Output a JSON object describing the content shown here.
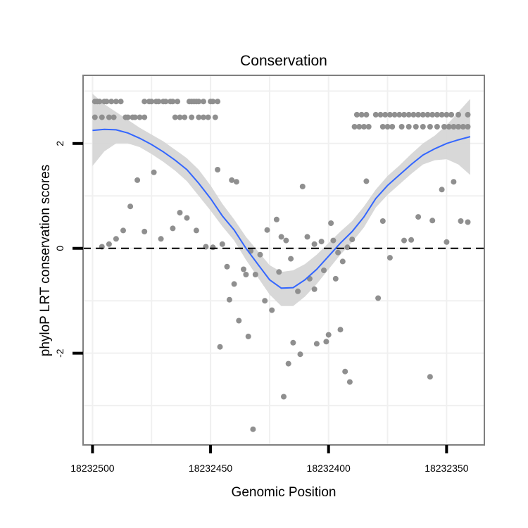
{
  "chart_data": {
    "type": "scatter",
    "title": "Conservation",
    "xlabel": "Genomic Position",
    "ylabel": "phyloP LRT conservation scores",
    "x_reversed": true,
    "xlim": [
      18232504,
      18232334
    ],
    "ylim": [
      -3.75,
      3.3
    ],
    "xticks": [
      18232500,
      18232450,
      18232400,
      18232350
    ],
    "xtick_labels": [
      "18232500",
      "18232450",
      "18232400",
      "18232350"
    ],
    "yticks": [
      2,
      0,
      -2
    ],
    "ytick_labels": [
      "2",
      "0",
      "-2"
    ],
    "grid": true,
    "reference_line": {
      "y": 0,
      "style": "dashed"
    },
    "colors": {
      "points": "#8f8f8f",
      "smooth": "#3366ff",
      "ribbon": "#d4d4d4",
      "panel_border": "#7f7f7f",
      "grid": "#f0f0f0"
    },
    "points": [
      {
        "x": 18232499,
        "y": 2.8
      },
      {
        "x": 18232498,
        "y": 2.8
      },
      {
        "x": 18232497,
        "y": 2.8
      },
      {
        "x": 18232495,
        "y": 2.8
      },
      {
        "x": 18232494,
        "y": 2.8
      },
      {
        "x": 18232492,
        "y": 2.8
      },
      {
        "x": 18232490,
        "y": 2.8
      },
      {
        "x": 18232488,
        "y": 2.8
      },
      {
        "x": 18232499,
        "y": 2.5
      },
      {
        "x": 18232496,
        "y": 2.5
      },
      {
        "x": 18232493,
        "y": 2.5
      },
      {
        "x": 18232491,
        "y": 2.5
      },
      {
        "x": 18232486,
        "y": 2.5
      },
      {
        "x": 18232485,
        "y": 2.5
      },
      {
        "x": 18232483,
        "y": 2.5
      },
      {
        "x": 18232482,
        "y": 2.5
      },
      {
        "x": 18232480,
        "y": 2.5
      },
      {
        "x": 18232478,
        "y": 2.5
      },
      {
        "x": 18232478,
        "y": 2.8
      },
      {
        "x": 18232476,
        "y": 2.8
      },
      {
        "x": 18232475,
        "y": 2.8
      },
      {
        "x": 18232473,
        "y": 2.8
      },
      {
        "x": 18232472,
        "y": 2.8
      },
      {
        "x": 18232470,
        "y": 2.8
      },
      {
        "x": 18232469,
        "y": 2.8
      },
      {
        "x": 18232467,
        "y": 2.8
      },
      {
        "x": 18232466,
        "y": 2.8
      },
      {
        "x": 18232464,
        "y": 2.8
      },
      {
        "x": 18232465,
        "y": 2.5
      },
      {
        "x": 18232463,
        "y": 2.5
      },
      {
        "x": 18232461,
        "y": 2.5
      },
      {
        "x": 18232458,
        "y": 2.5
      },
      {
        "x": 18232459,
        "y": 2.8
      },
      {
        "x": 18232458,
        "y": 2.8
      },
      {
        "x": 18232457,
        "y": 2.8
      },
      {
        "x": 18232456,
        "y": 2.8
      },
      {
        "x": 18232455,
        "y": 2.8
      },
      {
        "x": 18232453,
        "y": 2.8
      },
      {
        "x": 18232455,
        "y": 2.5
      },
      {
        "x": 18232453,
        "y": 2.5
      },
      {
        "x": 18232451,
        "y": 2.5
      },
      {
        "x": 18232448,
        "y": 2.5
      },
      {
        "x": 18232450,
        "y": 2.8
      },
      {
        "x": 18232449,
        "y": 2.8
      },
      {
        "x": 18232447,
        "y": 2.8
      },
      {
        "x": 18232496,
        "y": 0.03
      },
      {
        "x": 18232493,
        "y": 0.08
      },
      {
        "x": 18232490,
        "y": 0.18
      },
      {
        "x": 18232487,
        "y": 0.34
      },
      {
        "x": 18232484,
        "y": 0.8
      },
      {
        "x": 18232481,
        "y": 1.3
      },
      {
        "x": 18232478,
        "y": 0.32
      },
      {
        "x": 18232474,
        "y": 1.45
      },
      {
        "x": 18232471,
        "y": 0.18
      },
      {
        "x": 18232466,
        "y": 0.38
      },
      {
        "x": 18232463,
        "y": 0.68
      },
      {
        "x": 18232460,
        "y": 0.58
      },
      {
        "x": 18232456,
        "y": 0.34
      },
      {
        "x": 18232452,
        "y": 0.03
      },
      {
        "x": 18232449,
        "y": 0.02
      },
      {
        "x": 18232447,
        "y": 1.5
      },
      {
        "x": 18232445,
        "y": 0.08
      },
      {
        "x": 18232441,
        "y": 1.3
      },
      {
        "x": 18232439,
        "y": 1.27
      },
      {
        "x": 18232443,
        "y": -0.35
      },
      {
        "x": 18232442,
        "y": -0.98
      },
      {
        "x": 18232440,
        "y": -0.68
      },
      {
        "x": 18232438,
        "y": -1.38
      },
      {
        "x": 18232436,
        "y": -0.4
      },
      {
        "x": 18232435,
        "y": -0.5
      },
      {
        "x": 18232434,
        "y": -1.68
      },
      {
        "x": 18232432,
        "y": -3.45
      },
      {
        "x": 18232431,
        "y": -0.5
      },
      {
        "x": 18232429,
        "y": -0.12
      },
      {
        "x": 18232427,
        "y": -1.0
      },
      {
        "x": 18232426,
        "y": 0.35
      },
      {
        "x": 18232424,
        "y": -1.18
      },
      {
        "x": 18232446,
        "y": -1.88
      },
      {
        "x": 18232433,
        "y": -0.05
      },
      {
        "x": 18232422,
        "y": 0.55
      },
      {
        "x": 18232421,
        "y": -0.45
      },
      {
        "x": 18232420,
        "y": 0.22
      },
      {
        "x": 18232419,
        "y": -2.83
      },
      {
        "x": 18232418,
        "y": 0.15
      },
      {
        "x": 18232417,
        "y": -2.2
      },
      {
        "x": 18232416,
        "y": -0.2
      },
      {
        "x": 18232415,
        "y": -1.8
      },
      {
        "x": 18232413,
        "y": -0.82
      },
      {
        "x": 18232412,
        "y": -2.02
      },
      {
        "x": 18232411,
        "y": 1.18
      },
      {
        "x": 18232409,
        "y": 0.22
      },
      {
        "x": 18232408,
        "y": -0.58
      },
      {
        "x": 18232406,
        "y": -0.78
      },
      {
        "x": 18232406,
        "y": 0.08
      },
      {
        "x": 18232405,
        "y": -1.82
      },
      {
        "x": 18232403,
        "y": 0.13
      },
      {
        "x": 18232402,
        "y": -0.42
      },
      {
        "x": 18232401,
        "y": -1.78
      },
      {
        "x": 18232400,
        "y": -1.65
      },
      {
        "x": 18232399,
        "y": 0.48
      },
      {
        "x": 18232398,
        "y": 0.15
      },
      {
        "x": 18232397,
        "y": -0.58
      },
      {
        "x": 18232396,
        "y": -0.08
      },
      {
        "x": 18232395,
        "y": -1.55
      },
      {
        "x": 18232394,
        "y": -0.25
      },
      {
        "x": 18232393,
        "y": -2.35
      },
      {
        "x": 18232392,
        "y": 0.02
      },
      {
        "x": 18232391,
        "y": -2.55
      },
      {
        "x": 18232390,
        "y": 0.17
      },
      {
        "x": 18232388,
        "y": 2.55
      },
      {
        "x": 18232386,
        "y": 2.55
      },
      {
        "x": 18232384,
        "y": 2.55
      },
      {
        "x": 18232380,
        "y": 2.55
      },
      {
        "x": 18232378,
        "y": 2.55
      },
      {
        "x": 18232376,
        "y": 2.55
      },
      {
        "x": 18232374,
        "y": 2.55
      },
      {
        "x": 18232372,
        "y": 2.55
      },
      {
        "x": 18232370,
        "y": 2.55
      },
      {
        "x": 18232368,
        "y": 2.55
      },
      {
        "x": 18232366,
        "y": 2.55
      },
      {
        "x": 18232364,
        "y": 2.55
      },
      {
        "x": 18232362,
        "y": 2.55
      },
      {
        "x": 18232360,
        "y": 2.55
      },
      {
        "x": 18232358,
        "y": 2.55
      },
      {
        "x": 18232356,
        "y": 2.55
      },
      {
        "x": 18232354,
        "y": 2.55
      },
      {
        "x": 18232352,
        "y": 2.55
      },
      {
        "x": 18232350,
        "y": 2.55
      },
      {
        "x": 18232348,
        "y": 2.55
      },
      {
        "x": 18232345,
        "y": 2.55
      },
      {
        "x": 18232341,
        "y": 2.55
      },
      {
        "x": 18232389,
        "y": 2.32
      },
      {
        "x": 18232387,
        "y": 2.32
      },
      {
        "x": 18232385,
        "y": 2.32
      },
      {
        "x": 18232383,
        "y": 2.32
      },
      {
        "x": 18232377,
        "y": 2.32
      },
      {
        "x": 18232375,
        "y": 2.32
      },
      {
        "x": 18232373,
        "y": 2.32
      },
      {
        "x": 18232369,
        "y": 2.32
      },
      {
        "x": 18232366,
        "y": 2.32
      },
      {
        "x": 18232363,
        "y": 2.32
      },
      {
        "x": 18232360,
        "y": 2.32
      },
      {
        "x": 18232357,
        "y": 2.32
      },
      {
        "x": 18232354,
        "y": 2.32
      },
      {
        "x": 18232351,
        "y": 2.32
      },
      {
        "x": 18232349,
        "y": 2.32
      },
      {
        "x": 18232347,
        "y": 2.32
      },
      {
        "x": 18232345,
        "y": 2.32
      },
      {
        "x": 18232343,
        "y": 2.32
      },
      {
        "x": 18232341,
        "y": 2.32
      },
      {
        "x": 18232384,
        "y": 1.28
      },
      {
        "x": 18232379,
        "y": -0.95
      },
      {
        "x": 18232377,
        "y": 0.52
      },
      {
        "x": 18232374,
        "y": -0.18
      },
      {
        "x": 18232368,
        "y": 0.15
      },
      {
        "x": 18232365,
        "y": 0.16
      },
      {
        "x": 18232362,
        "y": 0.6
      },
      {
        "x": 18232357,
        "y": -2.45
      },
      {
        "x": 18232356,
        "y": 0.53
      },
      {
        "x": 18232352,
        "y": 1.12
      },
      {
        "x": 18232350,
        "y": 0.12
      },
      {
        "x": 18232347,
        "y": 1.27
      },
      {
        "x": 18232344,
        "y": 0.52
      },
      {
        "x": 18232341,
        "y": 0.5
      }
    ],
    "smooth": {
      "method": "loess",
      "x": [
        18232500,
        18232495,
        18232490,
        18232485,
        18232480,
        18232475,
        18232470,
        18232465,
        18232460,
        18232455,
        18232450,
        18232445,
        18232440,
        18232435,
        18232430,
        18232425,
        18232420,
        18232415,
        18232410,
        18232405,
        18232400,
        18232395,
        18232390,
        18232385,
        18232380,
        18232375,
        18232370,
        18232365,
        18232360,
        18232355,
        18232350,
        18232345,
        18232340
      ],
      "y": [
        2.25,
        2.27,
        2.26,
        2.2,
        2.1,
        1.98,
        1.84,
        1.68,
        1.5,
        1.24,
        0.95,
        0.62,
        0.35,
        0.0,
        -0.3,
        -0.6,
        -0.76,
        -0.75,
        -0.6,
        -0.4,
        -0.15,
        0.1,
        0.32,
        0.6,
        0.95,
        1.2,
        1.4,
        1.6,
        1.78,
        1.9,
        2.0,
        2.07,
        2.13
      ],
      "ymin": [
        1.57,
        1.85,
        2.0,
        2.0,
        1.93,
        1.8,
        1.65,
        1.48,
        1.28,
        1.0,
        0.72,
        0.42,
        0.15,
        -0.22,
        -0.55,
        -0.88,
        -1.1,
        -1.1,
        -0.92,
        -0.68,
        -0.4,
        -0.12,
        0.12,
        0.4,
        0.78,
        1.02,
        1.22,
        1.42,
        1.6,
        1.68,
        1.7,
        1.6,
        1.4
      ],
      "ymax": [
        2.95,
        2.75,
        2.6,
        2.45,
        2.3,
        2.17,
        2.04,
        1.88,
        1.72,
        1.5,
        1.2,
        0.85,
        0.55,
        0.22,
        -0.05,
        -0.32,
        -0.45,
        -0.42,
        -0.3,
        -0.12,
        0.1,
        0.32,
        0.52,
        0.8,
        1.12,
        1.38,
        1.58,
        1.8,
        2.0,
        2.15,
        2.35,
        2.6,
        2.85
      ]
    }
  }
}
